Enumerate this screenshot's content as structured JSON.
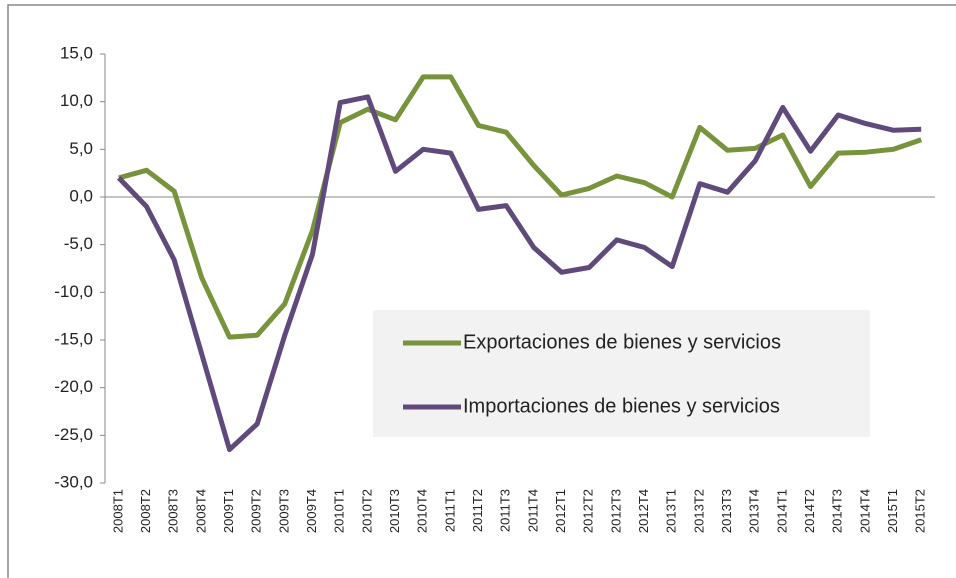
{
  "chart_data": {
    "type": "line",
    "categories": [
      "2008T1",
      "2008T2",
      "2008T3",
      "2008T4",
      "2009T1",
      "2009T2",
      "2009T3",
      "2009T4",
      "2010T1",
      "2010T2",
      "2010T3",
      "2010T4",
      "2011T1",
      "2011T2",
      "2011T3",
      "2011T4",
      "2012T1",
      "2012T2",
      "2012T3",
      "2012T4",
      "2013T1",
      "2013T2",
      "2013T3",
      "2013T4",
      "2014T1",
      "2014T2",
      "2014T3",
      "2014T4",
      "2015T1",
      "2015T2"
    ],
    "series": [
      {
        "name": "Exportaciones de bienes y servicios",
        "color": "#77933c",
        "values": [
          2.0,
          2.8,
          0.6,
          -8.5,
          -14.7,
          -14.5,
          -11.2,
          -3.5,
          7.8,
          9.2,
          8.1,
          12.6,
          12.6,
          7.5,
          6.8,
          3.3,
          0.2,
          0.9,
          2.2,
          1.5,
          0.0,
          7.3,
          4.9,
          5.1,
          6.5,
          1.1,
          4.6,
          4.7,
          5.0,
          6.0
        ]
      },
      {
        "name": "Importaciones de bienes y servicios",
        "color": "#604a7b",
        "values": [
          2.0,
          -1.0,
          -6.6,
          -16.5,
          -26.5,
          -23.8,
          -14.5,
          -6.0,
          9.9,
          10.5,
          2.7,
          5.0,
          4.6,
          -1.3,
          -0.9,
          -5.3,
          -7.9,
          -7.4,
          -4.5,
          -5.3,
          -7.3,
          1.4,
          0.5,
          3.8,
          9.4,
          4.8,
          8.6,
          7.7,
          7.0,
          7.1
        ]
      }
    ],
    "ylim": [
      -30,
      15
    ],
    "yticks": [
      {
        "value": -30,
        "label": "-30,0"
      },
      {
        "value": -25,
        "label": "-25,0"
      },
      {
        "value": -20,
        "label": "-20,0"
      },
      {
        "value": -15,
        "label": "-15,0"
      },
      {
        "value": -10,
        "label": "-10,0"
      },
      {
        "value": -5,
        "label": "-5,0"
      },
      {
        "value": 0,
        "label": "0,0"
      },
      {
        "value": 5,
        "label": "5,0"
      },
      {
        "value": 10,
        "label": "10,0"
      },
      {
        "value": 15,
        "label": "15,0"
      }
    ],
    "grid": false,
    "legend_position": "right"
  }
}
